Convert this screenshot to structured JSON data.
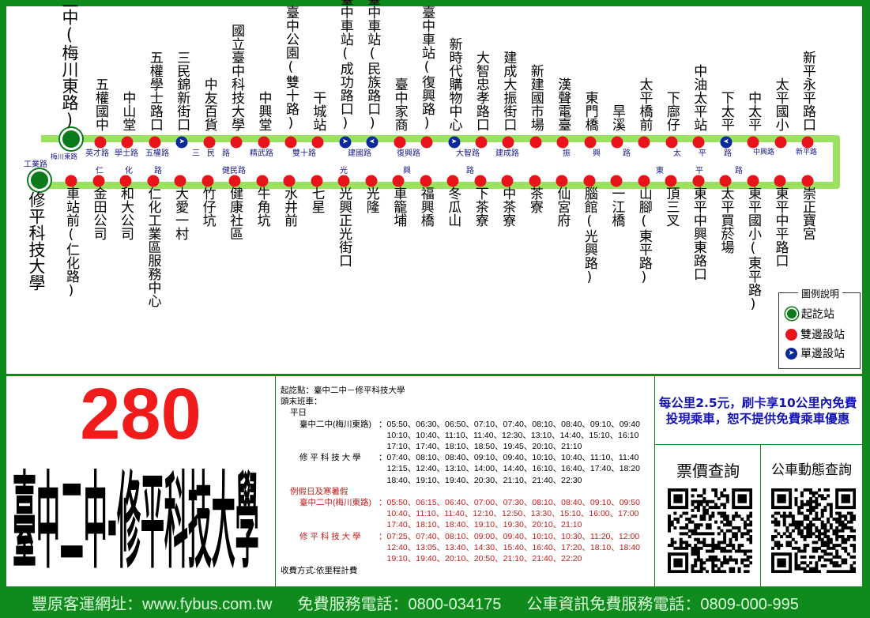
{
  "route": {
    "number": "280",
    "name": "臺中二中-修平科技大學"
  },
  "colors": {
    "border": "#0f8a1c",
    "route_band": "#9be35f",
    "two_side_stop": "#e8141a",
    "one_side_stop": "#0b2a9a",
    "terminal": "#0b7a1a",
    "route_number": "#f01c1c"
  },
  "map": {
    "terminal_start": "臺中二中(梅川東路)",
    "terminal_end": "修平科技大學",
    "top_stops": [
      {
        "name": "五權國中",
        "type": "both"
      },
      {
        "name": "中山堂",
        "type": "both"
      },
      {
        "name": "五權學士路口",
        "type": "both"
      },
      {
        "name": "三民錦新街口",
        "type": "oneway-right"
      },
      {
        "name": "中友百貨",
        "type": "both"
      },
      {
        "name": "國立臺中科技大學",
        "type": "both"
      },
      {
        "name": "中興堂",
        "type": "both"
      },
      {
        "name": "臺中公園(雙十路)",
        "type": "both"
      },
      {
        "name": "干城站",
        "type": "both"
      },
      {
        "name": "臺中車站(成功路口)",
        "type": "oneway-right"
      },
      {
        "name": "臺中車站(民族路口)",
        "type": "oneway-left"
      },
      {
        "name": "臺中家商",
        "type": "both"
      },
      {
        "name": "臺中車站(復興路)",
        "type": "both"
      },
      {
        "name": "新時代購物中心",
        "type": "oneway-right"
      },
      {
        "name": "大智忠孝路口",
        "type": "both"
      },
      {
        "name": "建成大振街口",
        "type": "both"
      },
      {
        "name": "新建國市場",
        "type": "both"
      },
      {
        "name": "漢聲電臺",
        "type": "both"
      },
      {
        "name": "東門橋",
        "type": "both"
      },
      {
        "name": "旱溪",
        "type": "both"
      },
      {
        "name": "太平橋前",
        "type": "both"
      },
      {
        "name": "下廍仔",
        "type": "both"
      },
      {
        "name": "中油太平站",
        "type": "both"
      },
      {
        "name": "下太平",
        "type": "oneway-left"
      },
      {
        "name": "中太平",
        "type": "both"
      },
      {
        "name": "太平國小",
        "type": "both"
      },
      {
        "name": "新平永平路口",
        "type": "both"
      }
    ],
    "bottom_stops": [
      {
        "name": "車站前(仁化路)",
        "type": "both"
      },
      {
        "name": "金田公司",
        "type": "both"
      },
      {
        "name": "和大公司",
        "type": "both"
      },
      {
        "name": "仁化工業區服務中心",
        "type": "both"
      },
      {
        "name": "大愛一村",
        "type": "both"
      },
      {
        "name": "竹仔坑",
        "type": "both"
      },
      {
        "name": "健康社區",
        "type": "both"
      },
      {
        "name": "牛角坑",
        "type": "both"
      },
      {
        "name": "水井前",
        "type": "both"
      },
      {
        "name": "七星",
        "type": "both"
      },
      {
        "name": "光興正光街口",
        "type": "both"
      },
      {
        "name": "光隆",
        "type": "both"
      },
      {
        "name": "車籠埔",
        "type": "both"
      },
      {
        "name": "福興橋",
        "type": "both"
      },
      {
        "name": "冬瓜山",
        "type": "both"
      },
      {
        "name": "下茶寮",
        "type": "both"
      },
      {
        "name": "中茶寮",
        "type": "both"
      },
      {
        "name": "茶寮",
        "type": "both"
      },
      {
        "name": "仙宮府",
        "type": "both"
      },
      {
        "name": "腦館(光興路)",
        "type": "both"
      },
      {
        "name": "一江橋",
        "type": "both"
      },
      {
        "name": "山腳(東平路)",
        "type": "both"
      },
      {
        "name": "頂三叉",
        "type": "both"
      },
      {
        "name": "東平中興東路口",
        "type": "both"
      },
      {
        "name": "太平買菸場",
        "type": "both"
      },
      {
        "name": "東平國小(東平路)",
        "type": "both"
      },
      {
        "name": "東平中平路口",
        "type": "both"
      },
      {
        "name": "崇正寶宮",
        "type": "both"
      }
    ],
    "roads_top": [
      "梅川東路",
      "英才路",
      "學士路",
      "五權路",
      "三民路",
      "精武路",
      "雙十路",
      "建國路",
      "復興路",
      "大智路",
      "建成路",
      "振興路",
      "太平路",
      "中興路",
      "新平路"
    ],
    "roads_bottom": [
      "工業路",
      "仁化路",
      "健民路",
      "光興路",
      "東平路"
    ]
  },
  "legend": {
    "title": "圖例說明",
    "terminal": "起訖站",
    "both_sides": "雙邊設站",
    "one_side": "單邊設站"
  },
  "schedule": {
    "endpoints": "起訖點：臺中二中－修平科技大學",
    "first_last_label": "頭末班車：",
    "weekday_label": "平日",
    "weekday": [
      {
        "stop": "臺中二中(梅川東路)",
        "times": [
          "05:50、06:30、06:50、07:10、07:40、08:10、08:40、09:10、09:40",
          "10:10、10:40、11:10、11:40、12:30、13:10、14:40、15:10、16:10",
          "17:10、17:40、18:10、18:50、19:45、20:10、21:10"
        ]
      },
      {
        "stop": "修 平 科 技 大 學",
        "times": [
          "07:40、08:10、08:40、09:10、09:40、10:10、10:40、11:10、11:40",
          "12:15、12:40、13:10、14:00、14:40、16:10、16:40、17:40、18:20",
          "18:40、19:10、19:40、20:30、21:10、21:40、22:30"
        ]
      }
    ],
    "holiday_label": "例假日及寒暑假",
    "holiday": [
      {
        "stop": "臺中二中(梅川東路)",
        "times": [
          "05:50、06:15、06:40、07:00、07:30、08:10、08:40、09:10、09:50",
          "10:40、11:10、11:40、12:10、12:50、13:30、15:10、16:00、17:00",
          "17:40、18:10、18:40、19:10、19:30、20:10、21:10"
        ]
      },
      {
        "stop": "修 平 科 技 大 學",
        "times": [
          "07:25、07:40、08:10、09:00、09:40、10:10、10:30、11:20、12:00",
          "12:40、13:05、13:40、14:30、15:40、16:40、17:20、18:10、18:40",
          "19:10、19:40、20:10、20:50、21:10、21:40、22:20"
        ]
      }
    ],
    "fare_method": "收費方式:依里程計費"
  },
  "fare_note": {
    "line1": "每公里2.5元，刷卡享10公里內免費",
    "line2": "投現乘車，恕不提供免費乘車優惠"
  },
  "qr": {
    "fare_query": "票價查詢",
    "bus_tracking": "公車動態查詢"
  },
  "footer": {
    "website": "豐原客運網址：www.fybus.com.tw",
    "service_phone": "免費服務電話：0800-034175",
    "info_phone": "公車資訊免費服務電話：0809-000-995"
  }
}
